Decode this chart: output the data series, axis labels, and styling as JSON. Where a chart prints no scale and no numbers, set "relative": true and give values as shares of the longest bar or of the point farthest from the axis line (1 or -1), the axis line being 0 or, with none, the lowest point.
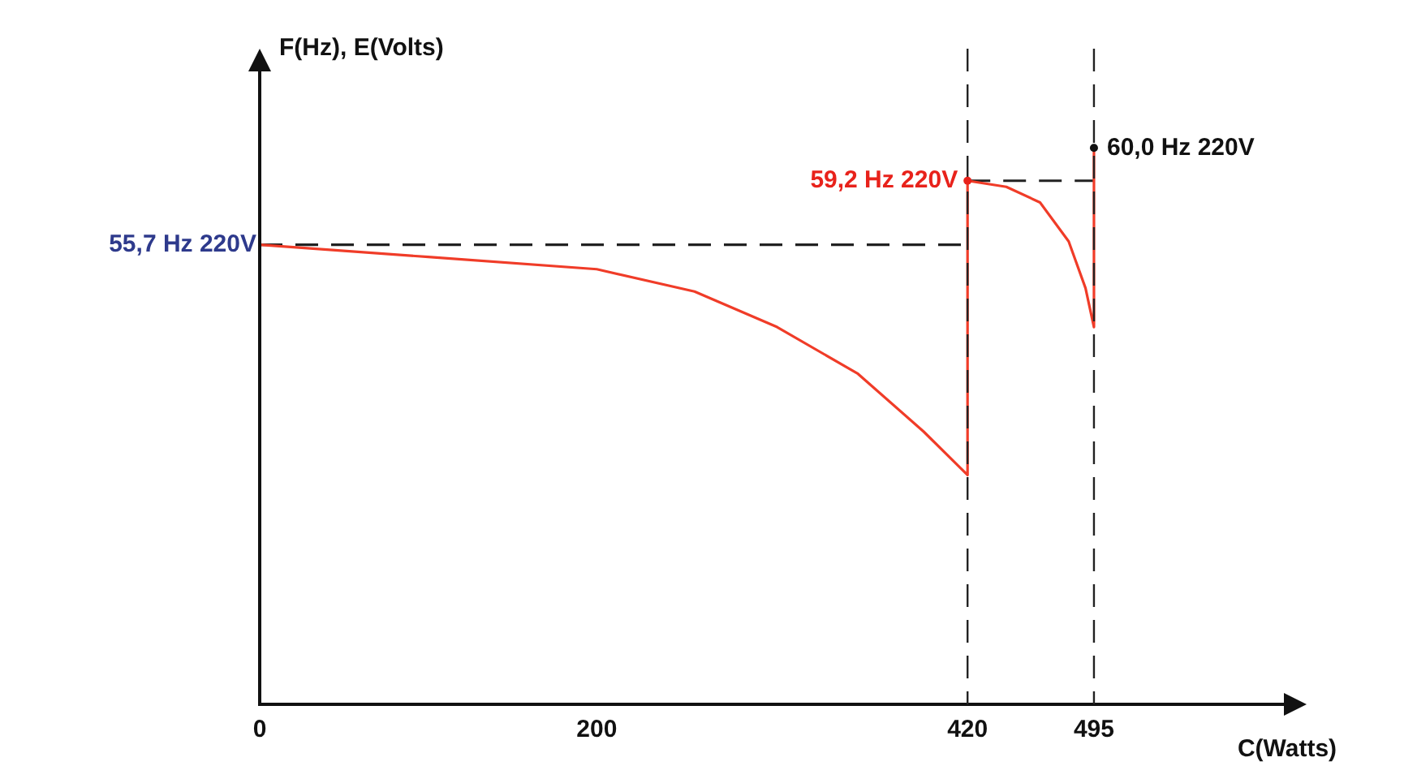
{
  "chart_data": {
    "type": "line",
    "relative": true,
    "xlabel": "C(Watts)",
    "ylabel": "F(Hz), E(Volts)",
    "xlim": [
      0,
      600
    ],
    "xticks": [
      0,
      200,
      {
        "value": 420,
        "label": "420"
      },
      {
        "value": 495,
        "label": "495"
      }
    ],
    "grid": false,
    "legend": false,
    "marker": "none",
    "series": [
      {
        "type": "line",
        "color": "#f03c28",
        "line_style": "solid",
        "x": [
          0,
          100,
          200,
          258,
          307,
          355,
          394,
          420,
          420,
          443,
          463,
          480,
          490,
          495,
          495
        ],
        "values": [
          0.826,
          0.804,
          0.782,
          0.742,
          0.678,
          0.594,
          0.49,
          0.412,
          0.941,
          0.93,
          0.902,
          0.832,
          0.748,
          0.678,
          1.0
        ]
      },
      {
        "type": "line",
        "color": "#222222",
        "line_style": "dashed",
        "x": [
          0,
          420
        ],
        "values": [
          0.826,
          0.826
        ]
      },
      {
        "type": "line",
        "color": "#222222",
        "line_style": "dashed",
        "x": [
          420,
          495
        ],
        "values": [
          0.941,
          0.941
        ]
      }
    ],
    "ref_lines": [
      {
        "axis": "x",
        "value": 420,
        "color": "#222222",
        "line_style": "dashed"
      },
      {
        "axis": "x",
        "value": 495,
        "color": "#222222",
        "line_style": "dashed"
      }
    ],
    "annotations": [
      {
        "text": "55,7 Hz 220V",
        "x": 0,
        "y": 0.826
      },
      {
        "text": "59,2 Hz 220V",
        "x": 420,
        "y": 0.941
      },
      {
        "text": "60,0 Hz 220V",
        "x": 495,
        "y": 1.0
      }
    ]
  }
}
